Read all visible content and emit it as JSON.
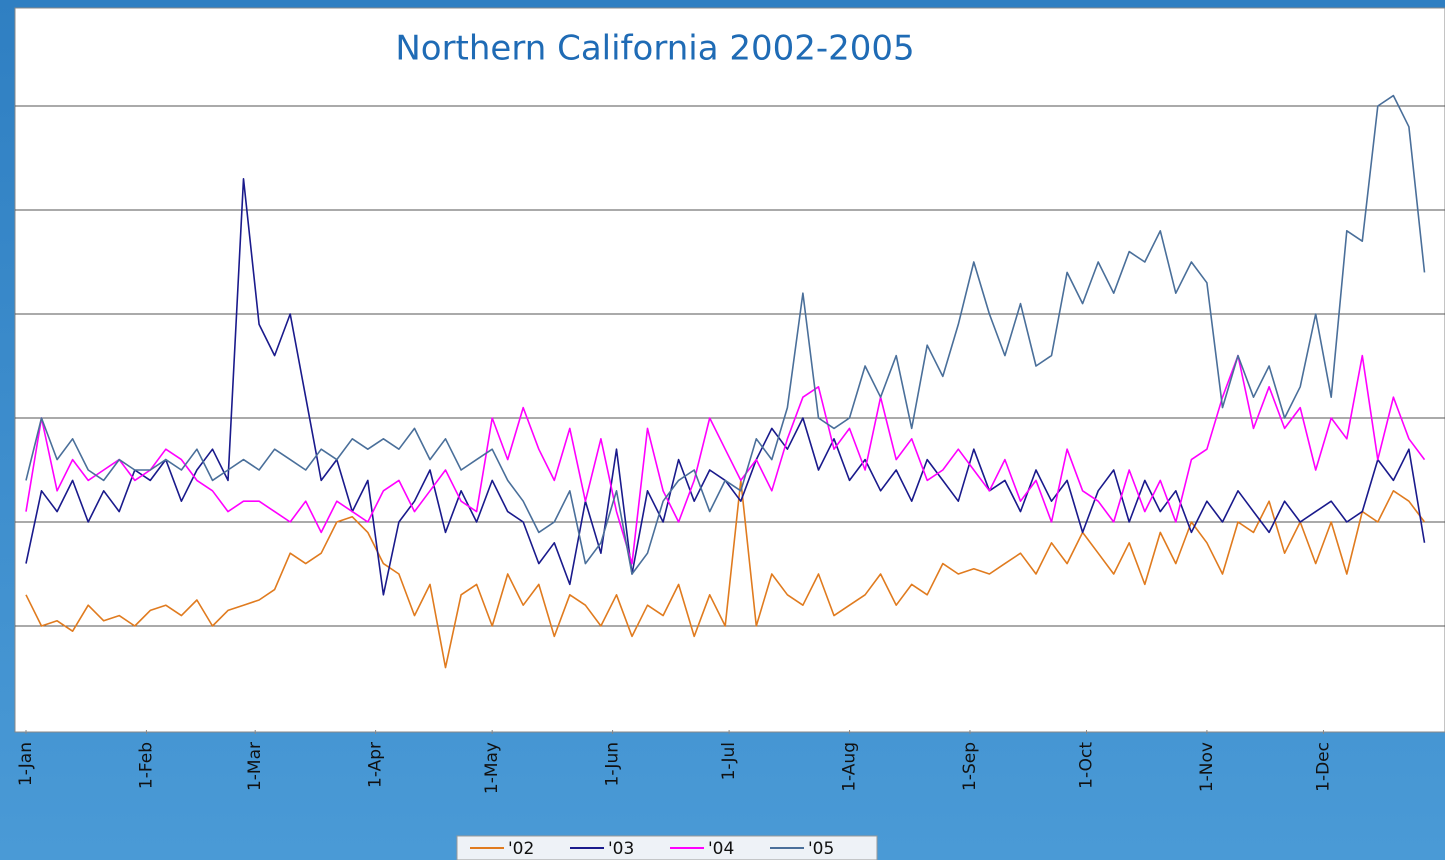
{
  "chart_data": {
    "type": "line",
    "title": "Northern California 2002-2005",
    "x": [
      1,
      5,
      9,
      13,
      17,
      21,
      25,
      29,
      33,
      37,
      41,
      45,
      49,
      53,
      57,
      61,
      65,
      69,
      73,
      77,
      81,
      85,
      89,
      93,
      97,
      101,
      105,
      109,
      113,
      117,
      121,
      125,
      129,
      133,
      137,
      141,
      145,
      149,
      153,
      157,
      161,
      165,
      169,
      173,
      177,
      181,
      185,
      189,
      193,
      197,
      201,
      205,
      209,
      213,
      217,
      221,
      225,
      229,
      233,
      237,
      241,
      245,
      249,
      253,
      257,
      261,
      265,
      269,
      273,
      277,
      281,
      285,
      289,
      293,
      297,
      301,
      305,
      309,
      313,
      317,
      321,
      325,
      329,
      333,
      337,
      341,
      345,
      349,
      353,
      357,
      361
    ],
    "xlim": [
      1,
      365
    ],
    "xticks": [
      {
        "value": 1,
        "label": "1-Jan"
      },
      {
        "value": 32,
        "label": "1-Feb"
      },
      {
        "value": 60,
        "label": "1-Mar"
      },
      {
        "value": 91,
        "label": "1-Apr"
      },
      {
        "value": 121,
        "label": "1-May"
      },
      {
        "value": 152,
        "label": "1-Jun"
      },
      {
        "value": 182,
        "label": "1-Jul"
      },
      {
        "value": 213,
        "label": "1-Aug"
      },
      {
        "value": 244,
        "label": "1-Sep"
      },
      {
        "value": 274,
        "label": "1-Oct"
      },
      {
        "value": 305,
        "label": "1-Nov"
      },
      {
        "value": 335,
        "label": "1-Dec"
      }
    ],
    "ylim": [
      0,
      7
    ],
    "yticks": [
      1,
      2,
      3,
      4,
      5,
      6
    ],
    "grid": true,
    "legend": "bottom",
    "series": [
      {
        "name": "'02",
        "color": "#e07b1f",
        "values": [
          1.3,
          1.0,
          1.05,
          0.95,
          1.2,
          1.05,
          1.1,
          1.0,
          1.15,
          1.2,
          1.1,
          1.25,
          1.0,
          1.15,
          1.2,
          1.25,
          1.35,
          1.7,
          1.6,
          1.7,
          2.0,
          2.05,
          1.9,
          1.6,
          1.5,
          1.1,
          1.4,
          0.6,
          1.3,
          1.4,
          1.0,
          1.5,
          1.2,
          1.4,
          0.9,
          1.3,
          1.2,
          1.0,
          1.3,
          0.9,
          1.2,
          1.1,
          1.4,
          0.9,
          1.3,
          1.0,
          2.4,
          1.0,
          1.5,
          1.3,
          1.2,
          1.5,
          1.1,
          1.2,
          1.3,
          1.5,
          1.2,
          1.4,
          1.3,
          1.6,
          1.5,
          1.55,
          1.5,
          1.6,
          1.7,
          1.5,
          1.8,
          1.6,
          1.9,
          1.7,
          1.5,
          1.8,
          1.4,
          1.9,
          1.6,
          2.0,
          1.8,
          1.5,
          2.0,
          1.9,
          2.2,
          1.7,
          2.0,
          1.6,
          2.0,
          1.5,
          2.1,
          2.0,
          2.3,
          2.2,
          2.0
        ]
      },
      {
        "name": "'03",
        "color": "#1a1a8c",
        "values": [
          1.6,
          2.3,
          2.1,
          2.4,
          2.0,
          2.3,
          2.1,
          2.5,
          2.4,
          2.6,
          2.2,
          2.5,
          2.7,
          2.4,
          5.3,
          3.9,
          3.6,
          4.0,
          3.2,
          2.4,
          2.6,
          2.1,
          2.4,
          1.3,
          2.0,
          2.2,
          2.5,
          1.9,
          2.3,
          2.0,
          2.4,
          2.1,
          2.0,
          1.6,
          1.8,
          1.4,
          2.2,
          1.7,
          2.7,
          1.5,
          2.3,
          2.0,
          2.6,
          2.2,
          2.5,
          2.4,
          2.2,
          2.6,
          2.9,
          2.7,
          3.0,
          2.5,
          2.8,
          2.4,
          2.6,
          2.3,
          2.5,
          2.2,
          2.6,
          2.4,
          2.2,
          2.7,
          2.3,
          2.4,
          2.1,
          2.5,
          2.2,
          2.4,
          1.9,
          2.3,
          2.5,
          2.0,
          2.4,
          2.1,
          2.3,
          1.9,
          2.2,
          2.0,
          2.3,
          2.1,
          1.9,
          2.2,
          2.0,
          2.1,
          2.2,
          2.0,
          2.1,
          2.6,
          2.4,
          2.7,
          1.8
        ]
      },
      {
        "name": "'04",
        "color": "#ff00ff",
        "values": [
          2.1,
          3.0,
          2.3,
          2.6,
          2.4,
          2.5,
          2.6,
          2.4,
          2.5,
          2.7,
          2.6,
          2.4,
          2.3,
          2.1,
          2.2,
          2.2,
          2.1,
          2.0,
          2.2,
          1.9,
          2.2,
          2.1,
          2.0,
          2.3,
          2.4,
          2.1,
          2.3,
          2.5,
          2.2,
          2.1,
          3.0,
          2.6,
          3.1,
          2.7,
          2.4,
          2.9,
          2.2,
          2.8,
          2.1,
          1.6,
          2.9,
          2.3,
          2.0,
          2.4,
          3.0,
          2.7,
          2.4,
          2.6,
          2.3,
          2.8,
          3.2,
          3.3,
          2.7,
          2.9,
          2.5,
          3.2,
          2.6,
          2.8,
          2.4,
          2.5,
          2.7,
          2.5,
          2.3,
          2.6,
          2.2,
          2.4,
          2.0,
          2.7,
          2.3,
          2.2,
          2.0,
          2.5,
          2.1,
          2.4,
          2.0,
          2.6,
          2.7,
          3.2,
          3.6,
          2.9,
          3.3,
          2.9,
          3.1,
          2.5,
          3.0,
          2.8,
          3.6,
          2.6,
          3.2,
          2.8,
          2.6
        ]
      },
      {
        "name": "'05",
        "color": "#4a6f9a",
        "values": [
          2.4,
          3.0,
          2.6,
          2.8,
          2.5,
          2.4,
          2.6,
          2.5,
          2.5,
          2.6,
          2.5,
          2.7,
          2.4,
          2.5,
          2.6,
          2.5,
          2.7,
          2.6,
          2.5,
          2.7,
          2.6,
          2.8,
          2.7,
          2.8,
          2.7,
          2.9,
          2.6,
          2.8,
          2.5,
          2.6,
          2.7,
          2.4,
          2.2,
          1.9,
          2.0,
          2.3,
          1.6,
          1.8,
          2.3,
          1.5,
          1.7,
          2.2,
          2.4,
          2.5,
          2.1,
          2.4,
          2.3,
          2.8,
          2.6,
          3.1,
          4.2,
          3.0,
          2.9,
          3.0,
          3.5,
          3.2,
          3.6,
          2.9,
          3.7,
          3.4,
          3.9,
          4.5,
          4.0,
          3.6,
          4.1,
          3.5,
          3.6,
          4.4,
          4.1,
          4.5,
          4.2,
          4.6,
          4.5,
          4.8,
          4.2,
          4.5,
          4.3,
          3.1,
          3.6,
          3.2,
          3.5,
          3.0,
          3.3,
          4.0,
          3.2,
          4.8,
          4.7,
          6.0,
          6.1,
          5.8,
          4.4
        ]
      }
    ]
  }
}
